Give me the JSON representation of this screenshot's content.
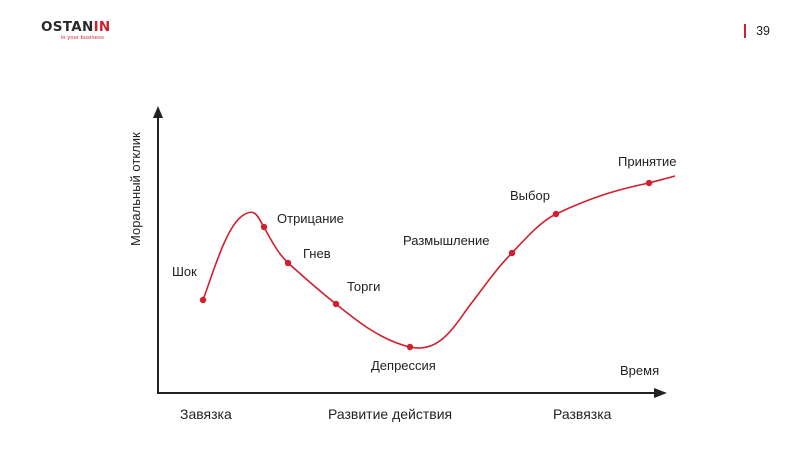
{
  "header": {
    "logo_main": "OSTAN",
    "logo_accent": "IN",
    "logo_tagline": "in your business",
    "page_number": "39"
  },
  "colors": {
    "accent": "#d01f2e",
    "text": "#222222",
    "axis": "#222222"
  },
  "axes": {
    "y_label": "Моральный отклик",
    "x_label": "Время"
  },
  "stages": [
    "Шок",
    "Отрицание",
    "Гнев",
    "Торги",
    "Депрессия",
    "Размышление",
    "Выбор",
    "Принятие"
  ],
  "phases": [
    "Завязка",
    "Развитие действия",
    "Развязка"
  ]
}
